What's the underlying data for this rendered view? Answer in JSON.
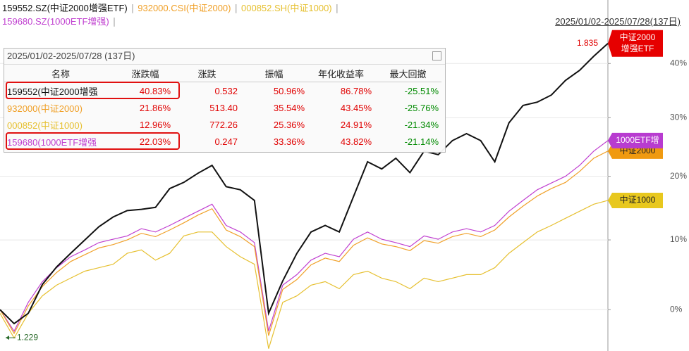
{
  "chart_data": {
    "type": "line",
    "period": "2025/01/02-2025/07/28(137日)",
    "yscale": "log-return",
    "ylim": [
      -5.5,
      52.7
    ],
    "yticks": [
      {
        "value": 0,
        "label": "0%"
      },
      {
        "value": 10,
        "label": "10%"
      },
      {
        "value": 20,
        "label": "20%"
      },
      {
        "value": 30,
        "label": "30%"
      },
      {
        "value": 40,
        "label": "40%"
      }
    ],
    "grid": true,
    "max_label": 1.835,
    "min_label": 1.229,
    "series": [
      {
        "name": "159552.SZ(中证2000增强ETF)",
        "color": "#111111",
        "tag_fill": "#e60000",
        "tag_text": "#ffffff",
        "end_label": [
          "中证2000",
          "增强ETF"
        ],
        "values": [
          0,
          -1.9,
          -0.5,
          3.5,
          6,
          8,
          10,
          12,
          13.5,
          14.5,
          14.7,
          15,
          18,
          19,
          20.5,
          21.8,
          18.3,
          17.8,
          16.1,
          -0.5,
          4,
          8,
          11.2,
          12.2,
          11.2,
          16.7,
          22.4,
          21.2,
          23,
          20.6,
          24.2,
          23.6,
          26,
          27.2,
          26,
          22.4,
          29.1,
          32.2,
          32.8,
          34.1,
          36.8,
          38.7,
          41.4,
          43.9
        ]
      },
      {
        "name": "932000.CSI(中证2000)",
        "color": "#f0a028",
        "tag_fill": "#f09a10",
        "tag_text": "#222222",
        "end_label": [
          "中证2000"
        ],
        "values": [
          0,
          -3.2,
          0.5,
          3.2,
          5.2,
          6.8,
          7.8,
          8.8,
          9.3,
          10,
          11,
          10.5,
          11.5,
          12.6,
          13.8,
          14.8,
          11.5,
          10.5,
          9,
          -3.5,
          2.8,
          4.2,
          6.3,
          7.3,
          6.8,
          9.2,
          10.3,
          9.4,
          9,
          8.4,
          9.9,
          9.5,
          10.5,
          11,
          10.5,
          11.5,
          13.5,
          15.2,
          16.8,
          18,
          19,
          20.8,
          23,
          24.2
        ]
      },
      {
        "name": "000852.SH(中证1000)",
        "color": "#e6c030",
        "tag_fill": "#e8c81e",
        "tag_text": "#222222",
        "end_label": [
          "中证1000"
        ],
        "values": [
          -0.5,
          -3.8,
          -0.5,
          1.9,
          3.4,
          4.4,
          5.4,
          5.9,
          6.4,
          8,
          8.5,
          7,
          8,
          10.6,
          11.2,
          11.2,
          9,
          7.5,
          6.4,
          -5.2,
          1,
          1.9,
          3.4,
          3.9,
          2.9,
          4.9,
          5.4,
          4.4,
          3.9,
          2.9,
          4.4,
          3.9,
          4.4,
          4.9,
          4.9,
          5.9,
          8,
          9.6,
          11.2,
          12.2,
          13.3,
          14.4,
          15.5,
          16.1
        ]
      },
      {
        "name": "159680.SZ(1000ETF增强)",
        "color": "#c040d0",
        "tag_fill": "#b83cd0",
        "tag_text": "#ffffff",
        "end_label": [
          "1000ETF增"
        ],
        "values": [
          0,
          -2.9,
          1,
          3.9,
          5.9,
          7.5,
          8.5,
          9.6,
          10.1,
          10.6,
          11.7,
          11.2,
          12.2,
          13.3,
          14.4,
          15.5,
          12.2,
          11.2,
          9.6,
          -2.9,
          3.4,
          4.9,
          7,
          8,
          7.5,
          10.1,
          11.2,
          10.1,
          9.6,
          9,
          10.6,
          10.1,
          11.2,
          11.7,
          11.2,
          12.2,
          14.4,
          16.1,
          17.8,
          18.9,
          20,
          21.8,
          24.2,
          26
        ]
      }
    ]
  },
  "table": {
    "title": "2025/01/02-2025/07/28 (137日)",
    "up_color": "#e00000",
    "down_color": "#008a00",
    "highlight_color": "#e01010",
    "highlighted_rows": [
      0,
      3
    ],
    "columns": [
      "名称",
      "涨跌幅",
      "涨跌",
      "振幅",
      "年化收益率",
      "最大回撤"
    ],
    "rows": [
      [
        "159552(中证2000增强",
        "40.83%",
        "0.532",
        "50.96%",
        "86.78%",
        "-25.51%"
      ],
      [
        "932000(中证2000)",
        "21.86%",
        "513.40",
        "35.54%",
        "43.45%",
        "-25.76%"
      ],
      [
        "000852(中证1000)",
        "12.96%",
        "772.26",
        "25.36%",
        "24.91%",
        "-21.34%"
      ],
      [
        "159680(1000ETF增强",
        "22.03%",
        "0.247",
        "33.36%",
        "43.82%",
        "-21.14%"
      ]
    ]
  }
}
